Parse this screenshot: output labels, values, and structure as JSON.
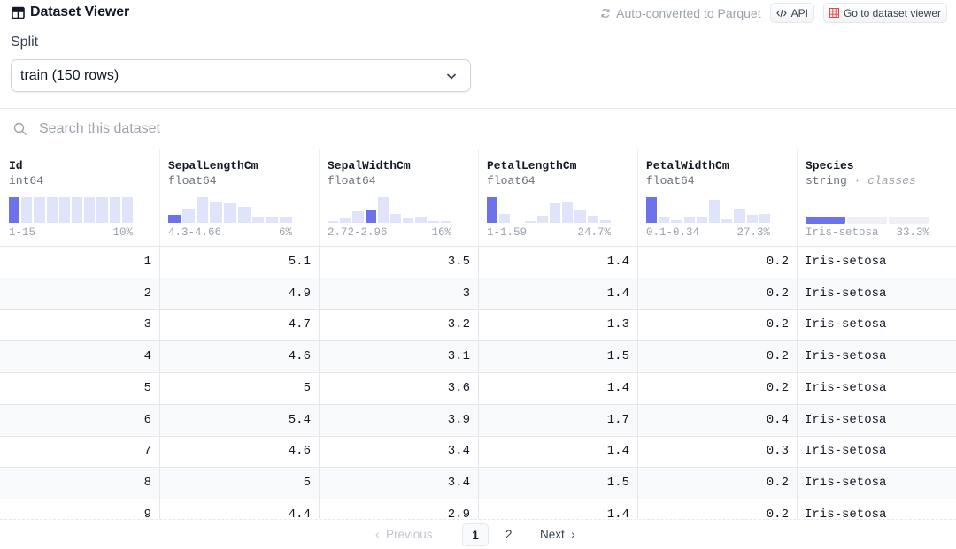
{
  "header": {
    "title": "Dataset Viewer",
    "auto_link": "Auto-converted",
    "auto_rest": " to Parquet",
    "api_label": "API",
    "viewer_label": "Go to dataset viewer"
  },
  "split": {
    "label": "Split",
    "selected": "train (150 rows)"
  },
  "search": {
    "placeholder": "Search this dataset"
  },
  "columns": [
    {
      "name": "Id",
      "type": "int64",
      "range": "1-15",
      "pct": "10%",
      "hist": [
        1,
        1,
        1,
        1,
        1,
        1,
        1,
        1,
        1,
        1
      ],
      "active": 0
    },
    {
      "name": "SepalLengthCm",
      "type": "float64",
      "range": "4.3-4.66",
      "pct": "6%",
      "hist": [
        0.32,
        0.55,
        1.0,
        0.82,
        0.75,
        0.62,
        0.2,
        0.2,
        0.22
      ],
      "active": 0
    },
    {
      "name": "SepalWidthCm",
      "type": "float64",
      "range": "2.72-2.96",
      "pct": "16%",
      "hist": [
        0.08,
        0.18,
        0.45,
        0.48,
        1.0,
        0.35,
        0.18,
        0.2,
        0.06,
        0.06
      ],
      "active": 3
    },
    {
      "name": "PetalLengthCm",
      "type": "float64",
      "range": "1-1.59",
      "pct": "24.7%",
      "hist": [
        1.0,
        0.35,
        0.0,
        0.06,
        0.28,
        0.75,
        0.8,
        0.5,
        0.28,
        0.12
      ],
      "active": 0
    },
    {
      "name": "PetalWidthCm",
      "type": "float64",
      "range": "0.1-0.34",
      "pct": "27.3%",
      "hist": [
        1.0,
        0.2,
        0.1,
        0.2,
        0.22,
        0.9,
        0.15,
        0.55,
        0.3,
        0.34
      ],
      "active": 0
    },
    {
      "name": "Species",
      "type": "string",
      "type_extra": "classes",
      "range": "Iris-setosa",
      "pct": "33.3%"
    }
  ],
  "rows": [
    [
      "1",
      "5.1",
      "3.5",
      "1.4",
      "0.2",
      "Iris-setosa"
    ],
    [
      "2",
      "4.9",
      "3",
      "1.4",
      "0.2",
      "Iris-setosa"
    ],
    [
      "3",
      "4.7",
      "3.2",
      "1.3",
      "0.2",
      "Iris-setosa"
    ],
    [
      "4",
      "4.6",
      "3.1",
      "1.5",
      "0.2",
      "Iris-setosa"
    ],
    [
      "5",
      "5",
      "3.6",
      "1.4",
      "0.2",
      "Iris-setosa"
    ],
    [
      "6",
      "5.4",
      "3.9",
      "1.7",
      "0.4",
      "Iris-setosa"
    ],
    [
      "7",
      "4.6",
      "3.4",
      "1.4",
      "0.3",
      "Iris-setosa"
    ],
    [
      "8",
      "5",
      "3.4",
      "1.5",
      "0.2",
      "Iris-setosa"
    ],
    [
      "9",
      "4.4",
      "2.9",
      "1.4",
      "0.2",
      "Iris-setosa"
    ]
  ],
  "pager": {
    "previous": "Previous",
    "next": "Next",
    "pages": [
      "1",
      "2"
    ],
    "current": "1"
  },
  "colors": {
    "accent": "#6b72ea",
    "accent_light": "#dfe4fb"
  }
}
